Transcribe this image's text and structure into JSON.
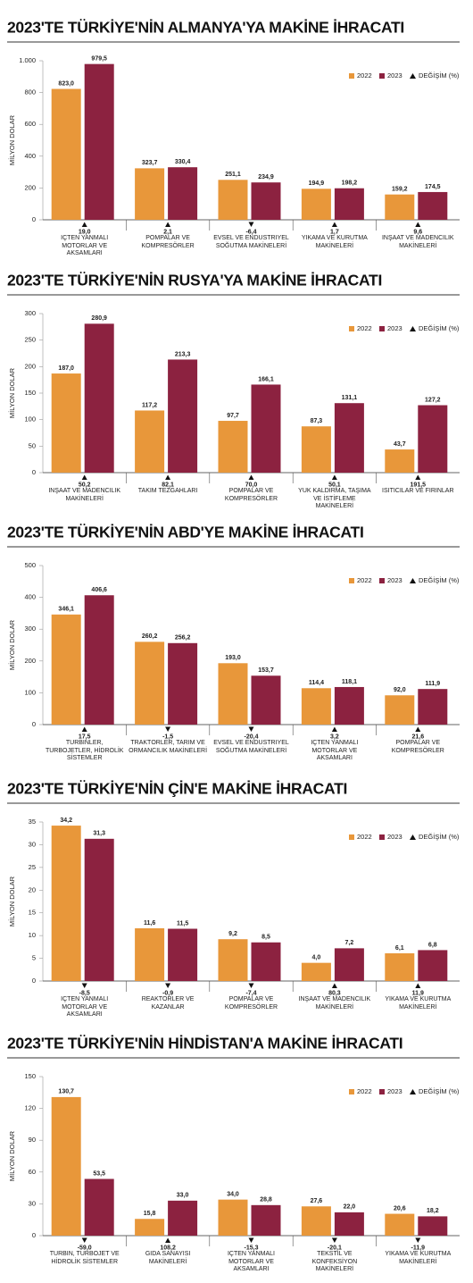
{
  "chart_data": [
    {
      "type": "bar",
      "title": "2023'TE TÜRKİYE'NİN ALMANYA'YA MAKİNE İHRACATI",
      "y_label": "MİLYON DOLAR",
      "categories": [
        "İÇTEN YANMALI MOTORLAR VE AKSAMLARI",
        "POMPALAR VE KOMPRESÖRLER",
        "EVSEL VE ENDÜSTRİYEL SOĞUTMA MAKİNELERİ",
        "YIKAMA VE KURUTMA MAKİNELERİ",
        "İNŞAAT VE MADENCİLİK MAKİNELERİ"
      ],
      "series": [
        {
          "name": "2022",
          "color": "#e8973a",
          "values": [
            823.0,
            323.7,
            251.1,
            194.9,
            159.2
          ],
          "value_labels": [
            "823,0",
            "323,7",
            "251,1",
            "194,9",
            "159,2"
          ]
        },
        {
          "name": "2023",
          "color": "#8c2240",
          "values": [
            979.5,
            330.4,
            234.9,
            198.2,
            174.5
          ],
          "value_labels": [
            "979,5",
            "330,4",
            "234,9",
            "198,2",
            "174,5"
          ]
        }
      ],
      "change": {
        "name": "DEĞİŞİM (%)",
        "values": [
          19.0,
          2.1,
          -6.4,
          1.7,
          9.6
        ],
        "value_labels": [
          "19,0",
          "2,1",
          "-6,4",
          "1,7",
          "9,6"
        ]
      },
      "ylim": [
        0,
        1000
      ],
      "yticks": [
        0,
        200,
        400,
        600,
        800,
        {
          "value": 1000,
          "label": "1.000"
        }
      ]
    },
    {
      "type": "bar",
      "title": "2023'TE TÜRKİYE'NİN RUSYA'YA MAKİNE İHRACATI",
      "y_label": "MİLYON DOLAR",
      "categories": [
        "İNŞAAT VE MADENCİLİK MAKİNELERİ",
        "TAKIM TEZGÂHLARI",
        "POMPALAR VE KOMPRESÖRLER",
        "YÜK KALDIRMA, TAŞIMA VE İSTİFLEME MAKİNELERİ",
        "ISITICILAR VE FIRINLAR"
      ],
      "series": [
        {
          "name": "2022",
          "color": "#e8973a",
          "values": [
            187.0,
            117.2,
            97.7,
            87.3,
            43.7
          ],
          "value_labels": [
            "187,0",
            "117,2",
            "97,7",
            "87,3",
            "43,7"
          ]
        },
        {
          "name": "2023",
          "color": "#8c2240",
          "values": [
            280.9,
            213.3,
            166.1,
            131.1,
            127.2
          ],
          "value_labels": [
            "280,9",
            "213,3",
            "166,1",
            "131,1",
            "127,2"
          ]
        }
      ],
      "change": {
        "name": "DEĞİŞİM (%)",
        "values": [
          50.2,
          82.1,
          70.0,
          50.1,
          191.5
        ],
        "value_labels": [
          "50,2",
          "82,1",
          "70,0",
          "50,1",
          "191,5"
        ]
      },
      "ylim": [
        0,
        300
      ],
      "yticks": [
        0,
        50,
        100,
        150,
        200,
        250,
        300
      ]
    },
    {
      "type": "bar",
      "title": "2023'TE TÜRKİYE'NİN ABD'YE MAKİNE İHRACATI",
      "y_label": "MİLYON DOLAR",
      "categories": [
        "TÜRBİNLER, TURBOJETLER, HİDROLİK SİSTEMLER",
        "TRAKTÖRLER, TARIM VE ORMANCILIK MAKİNELERİ",
        "EVSEL VE ENDÜSTRİYEL SOĞUTMA MAKİNELERİ",
        "İÇTEN YANMALI MOTORLAR VE AKSAMLARI",
        "POMPALAR VE KOMPRESÖRLER"
      ],
      "series": [
        {
          "name": "2022",
          "color": "#e8973a",
          "values": [
            346.1,
            260.2,
            193.0,
            114.4,
            92.0
          ],
          "value_labels": [
            "346,1",
            "260,2",
            "193,0",
            "114,4",
            "92,0"
          ]
        },
        {
          "name": "2023",
          "color": "#8c2240",
          "values": [
            406.6,
            256.2,
            153.7,
            118.1,
            111.9
          ],
          "value_labels": [
            "406,6",
            "256,2",
            "153,7",
            "118,1",
            "111,9"
          ]
        }
      ],
      "change": {
        "name": "DEĞİŞİM (%)",
        "values": [
          17.5,
          -1.5,
          -20.4,
          3.2,
          21.6
        ],
        "value_labels": [
          "17,5",
          "-1,5",
          "-20,4",
          "3,2",
          "21,6"
        ]
      },
      "ylim": [
        0,
        500
      ],
      "yticks": [
        0,
        100,
        200,
        300,
        400,
        500
      ]
    },
    {
      "type": "bar",
      "title": "2023'TE TÜRKİYE'NİN ÇİN'E MAKİNE İHRACATI",
      "y_label": "MİLYON DOLAR",
      "categories": [
        "İÇTEN YANMALI MOTORLAR VE AKSAMLARI",
        "REAKTÖRLER VE KAZANLAR",
        "POMPALAR VE KOMPRESÖRLER",
        "İNŞAAT VE MADENCİLİK MAKİNELERİ",
        "YIKAMA VE KURUTMA MAKİNELERİ"
      ],
      "series": [
        {
          "name": "2022",
          "color": "#e8973a",
          "values": [
            34.2,
            11.6,
            9.2,
            4.0,
            6.1
          ],
          "value_labels": [
            "34,2",
            "11,6",
            "9,2",
            "4,0",
            "6,1"
          ]
        },
        {
          "name": "2023",
          "color": "#8c2240",
          "values": [
            31.3,
            11.5,
            8.5,
            7.2,
            6.8
          ],
          "value_labels": [
            "31,3",
            "11,5",
            "8,5",
            "7,2",
            "6,8"
          ]
        }
      ],
      "change": {
        "name": "DEĞİŞİM (%)",
        "values": [
          -8.5,
          -0.9,
          -7.4,
          80.3,
          11.9
        ],
        "value_labels": [
          "-8,5",
          "-0,9",
          "-7,4",
          "80,3",
          "11,9"
        ]
      },
      "ylim": [
        0,
        35
      ],
      "yticks": [
        0,
        5,
        10,
        15,
        20,
        25,
        30,
        35
      ]
    },
    {
      "type": "bar",
      "title": "2023'TE TÜRKİYE'NİN HİNDİSTAN'A MAKİNE İHRACATI",
      "y_label": "MİLYON DOLAR",
      "categories": [
        "TÜRBİN, TURBOJET VE HİDROLİK SİSTEMLER",
        "GIDA SANAYİSİ MAKİNELERİ",
        "İÇTEN YANMALI MOTORLAR VE AKSAMLARI",
        "TEKSTİL VE KONFEKSİYON MAKİNELERİ",
        "YIKAMA VE KURUTMA MAKİNELERİ"
      ],
      "series": [
        {
          "name": "2022",
          "color": "#e8973a",
          "values": [
            130.7,
            15.8,
            34.0,
            27.6,
            20.6
          ],
          "value_labels": [
            "130,7",
            "15,8",
            "34,0",
            "27,6",
            "20,6"
          ]
        },
        {
          "name": "2023",
          "color": "#8c2240",
          "values": [
            53.5,
            33.0,
            28.8,
            22.0,
            18.2
          ],
          "value_labels": [
            "53,5",
            "33,0",
            "28,8",
            "22,0",
            "18,2"
          ]
        }
      ],
      "change": {
        "name": "DEĞİŞİM (%)",
        "values": [
          -59.0,
          108.2,
          -15.3,
          -20.1,
          -11.9
        ],
        "value_labels": [
          "-59,0",
          "108,2",
          "-15,3",
          "-20,1",
          "-11,9"
        ]
      },
      "ylim": [
        0,
        150
      ],
      "yticks": [
        0,
        30,
        60,
        90,
        120,
        150
      ]
    }
  ]
}
